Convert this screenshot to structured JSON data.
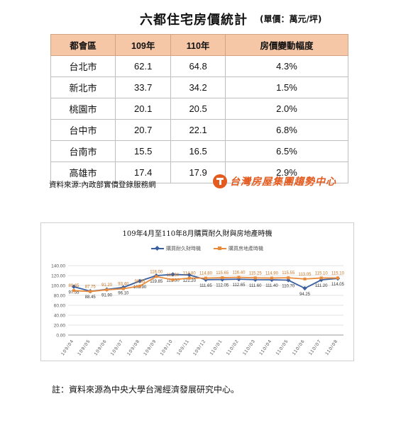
{
  "doc": {
    "title": "六都住宅房價統計",
    "unit": "(單價：萬元/坪)",
    "source": "資料來源:內政部實價登錄服務網",
    "brand": "台灣房屋集團趨勢中心",
    "note": "註：資料來源為中央大學台灣經濟發展研究中心。"
  },
  "table": {
    "headers": [
      "都會區",
      "109年",
      "110年",
      "房價變動幅度"
    ],
    "rows": [
      [
        "台北市",
        "62.1",
        "64.8",
        "4.3%"
      ],
      [
        "新北市",
        "33.7",
        "34.2",
        "1.5%"
      ],
      [
        "桃園市",
        "20.1",
        "20.5",
        "2.0%"
      ],
      [
        "台中市",
        "20.7",
        "22.1",
        "6.8%"
      ],
      [
        "台南市",
        "15.5",
        "16.5",
        "6.5%"
      ],
      [
        "高雄市",
        "17.4",
        "17.9",
        "2.9%"
      ]
    ]
  },
  "chart_data": {
    "type": "line",
    "title": "109年4月至110年8月購買耐久財與房地產時機",
    "x": [
      "109/04",
      "109/05",
      "109/06",
      "109/07",
      "109/08",
      "109/09",
      "109/10",
      "109/11",
      "109/12",
      "110/01",
      "110/02",
      "110/03",
      "110/04",
      "110/05",
      "110/06",
      "110/07",
      "110/08"
    ],
    "series": [
      {
        "name": "購買耐久財時機",
        "color": "#3a5fa0",
        "values": [
          97.55,
          88.45,
          91.9,
          96.1,
          108.9,
          119.85,
          122.3,
          121.2,
          111.65,
          112.05,
          112.65,
          111.6,
          111.4,
          110.7,
          94.25,
          111.2,
          114.05
        ]
      },
      {
        "name": "購買房地產時機",
        "color": "#e88a3a",
        "values": [
          89.65,
          87.75,
          91.2,
          93.4,
          98.85,
          118.0,
          111.5,
          114.8,
          114.8,
          115.65,
          116.4,
          115.25,
          114.9,
          115.55,
          113.05,
          115.1,
          115.1
        ]
      }
    ],
    "yticks": [
      "0.00",
      "20.00",
      "40.00",
      "60.00",
      "80.00",
      "100.00",
      "120.00",
      "140.00"
    ],
    "ylim": [
      0,
      140
    ],
    "grid": true,
    "legend": "top-center"
  }
}
